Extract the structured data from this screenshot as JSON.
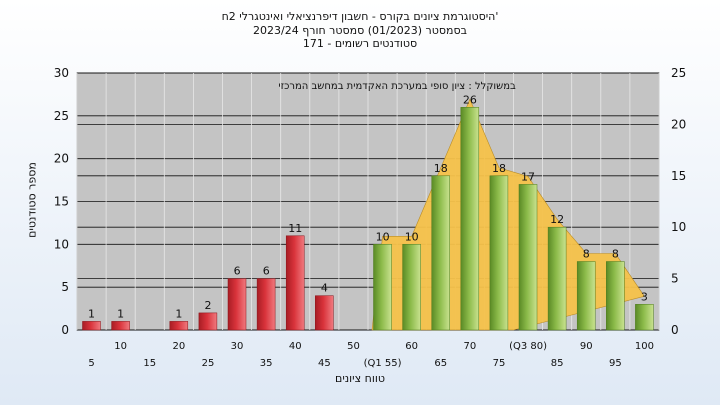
{
  "chart_data": {
    "type": "bar",
    "title_lines": [
      "'היסטוגרמת ציונים בקורס - חשבון דיפרנציאלי ואינטגרלי 2ח",
      "בסמסטר  (01/2023)  סמסטר חורף 2023/24",
      "סטודנטים רשומים - 171"
    ],
    "annotation": "במשוקלל : ציון סופי במערכת האקדמית במחשב המרכזי",
    "xlabel": "טווח ציונים",
    "ylabel": "מספר סטודנטים",
    "ylim": [
      0,
      30
    ],
    "y_ticks": [
      0,
      5,
      10,
      15,
      20,
      25,
      30
    ],
    "ylim_right": [
      0,
      25
    ],
    "y_ticks_right": [
      0,
      5,
      10,
      15,
      20,
      25
    ],
    "grid": true,
    "x_tick_labels_upper": [
      "10",
      "20",
      "30",
      "40",
      "50",
      "60",
      "70",
      "(Q3 80)",
      "90",
      "100"
    ],
    "x_tick_labels_lower": [
      "5",
      "15",
      "25",
      "35",
      "45",
      "(Q1 55)",
      "65",
      "75",
      "85",
      "95"
    ],
    "categories": [
      "5",
      "10",
      "15",
      "20",
      "25",
      "30",
      "35",
      "40",
      "45",
      "50",
      "55",
      "60",
      "65",
      "70",
      "75",
      "80",
      "85",
      "90",
      "95",
      "100"
    ],
    "values": [
      1,
      1,
      0,
      1,
      2,
      6,
      6,
      11,
      4,
      0,
      10,
      10,
      18,
      26,
      18,
      17,
      12,
      8,
      8,
      3
    ],
    "value_labels": [
      "1",
      "1",
      "",
      "1",
      "2",
      "6",
      "6",
      "11",
      "4",
      "",
      "10",
      "10",
      "18",
      "26",
      "18",
      "17",
      "12",
      "8",
      "8",
      "3"
    ],
    "passing_from": "55",
    "colors": {
      "fail": "#d9333b",
      "pass": "#8cbb4a",
      "band": "#f6c24a",
      "plot_bg": "#c4c4c4"
    }
  }
}
